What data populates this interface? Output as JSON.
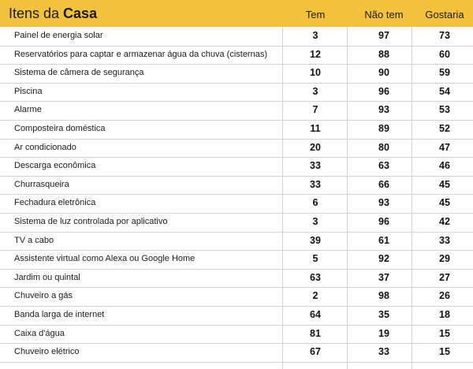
{
  "chart_data": {
    "type": "table",
    "title_light": "Itens da ",
    "title_bold": "Casa",
    "columns": [
      "Tem",
      "Não tem",
      "Gostaria"
    ],
    "rows": [
      {
        "item": "Painel de energia solar",
        "tem": 3,
        "nao_tem": 97,
        "gostaria": 73
      },
      {
        "item": "Reservatórios para captar e armazenar água da chuva (cisternas)",
        "tem": 12,
        "nao_tem": 88,
        "gostaria": 60
      },
      {
        "item": "Sistema de câmera de segurança",
        "tem": 10,
        "nao_tem": 90,
        "gostaria": 59
      },
      {
        "item": "Piscina",
        "tem": 3,
        "nao_tem": 96,
        "gostaria": 54
      },
      {
        "item": "Alarme",
        "tem": 7,
        "nao_tem": 93,
        "gostaria": 53
      },
      {
        "item": "Composteira doméstica",
        "tem": 11,
        "nao_tem": 89,
        "gostaria": 52
      },
      {
        "item": "Ar condicionado",
        "tem": 20,
        "nao_tem": 80,
        "gostaria": 47
      },
      {
        "item": "Descarga econômica",
        "tem": 33,
        "nao_tem": 63,
        "gostaria": 46
      },
      {
        "item": "Churrasqueira",
        "tem": 33,
        "nao_tem": 66,
        "gostaria": 45
      },
      {
        "item": "Fechadura eletrônica",
        "tem": 6,
        "nao_tem": 93,
        "gostaria": 45
      },
      {
        "item": "Sistema de luz controlada por aplicativo",
        "tem": 3,
        "nao_tem": 96,
        "gostaria": 42
      },
      {
        "item": "TV a cabo",
        "tem": 39,
        "nao_tem": 61,
        "gostaria": 33
      },
      {
        "item": "Assistente virtual como Alexa ou Google Home",
        "tem": 5,
        "nao_tem": 92,
        "gostaria": 29
      },
      {
        "item": "Jardim ou quintal",
        "tem": 63,
        "nao_tem": 37,
        "gostaria": 27
      },
      {
        "item": "Chuveiro a gás",
        "tem": 2,
        "nao_tem": 98,
        "gostaria": 26
      },
      {
        "item": "Banda larga de internet",
        "tem": 64,
        "nao_tem": 35,
        "gostaria": 18
      },
      {
        "item": "Caixa d'água",
        "tem": 81,
        "nao_tem": 19,
        "gostaria": 15
      },
      {
        "item": "Chuveiro elétrico",
        "tem": 67,
        "nao_tem": 33,
        "gostaria": 15
      }
    ]
  },
  "colors": {
    "header_bg": "#f3c23c",
    "grid_line": "#d2d2d2",
    "text": "#1a1a1a"
  }
}
